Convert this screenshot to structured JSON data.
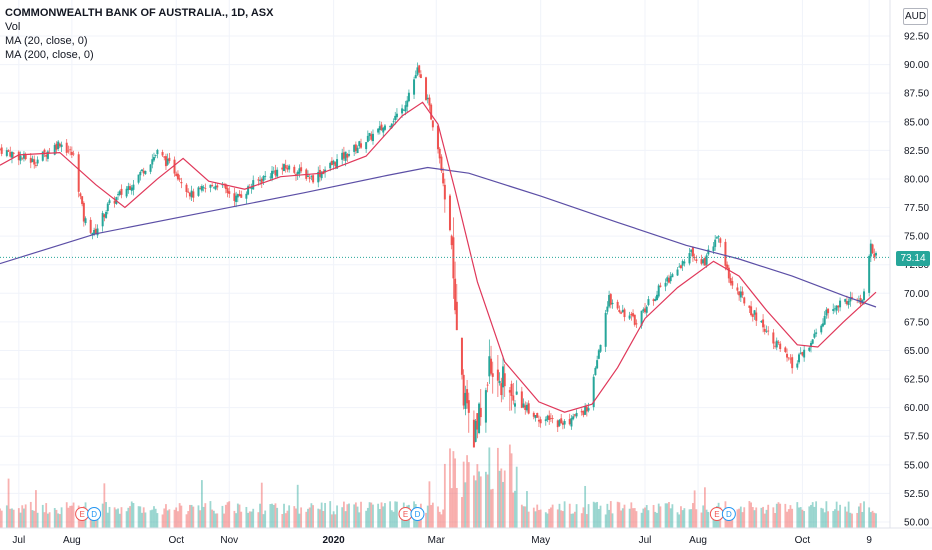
{
  "header": {
    "title": "COMMONWEALTH BANK OF AUSTRALIA., 1D, ASX",
    "indicators": [
      "Vol",
      "MA (20, close, 0)",
      "MA (200, close, 0)"
    ],
    "currency": "AUD",
    "last_price": "73.14"
  },
  "colors": {
    "up": "#26a69a",
    "down": "#ef5350",
    "ma20": "#e0385a",
    "ma200": "#5c4fa6",
    "grid": "#f0f3fa",
    "earnings": "#ef5350",
    "dividend": "#2196f3"
  },
  "events": [
    {
      "label": "E",
      "kind": "earnings",
      "x_date": "2019-08-07"
    },
    {
      "label": "D",
      "kind": "dividend",
      "x_date": "2019-08-14"
    },
    {
      "label": "E",
      "kind": "earnings",
      "x_date": "2020-02-12"
    },
    {
      "label": "D",
      "kind": "dividend",
      "x_date": "2020-02-19"
    },
    {
      "label": "E",
      "kind": "earnings",
      "x_date": "2020-08-12"
    },
    {
      "label": "D",
      "kind": "dividend",
      "x_date": "2020-08-19"
    }
  ],
  "chart_data": {
    "type": "candlestick",
    "x_ticks": [
      {
        "label": "Jul",
        "date": "2019-07-01"
      },
      {
        "label": "Aug",
        "date": "2019-08-01"
      },
      {
        "label": "Oct",
        "date": "2019-10-01"
      },
      {
        "label": "Nov",
        "date": "2019-11-01"
      },
      {
        "label": "2020",
        "date": "2020-01-01",
        "bold": true
      },
      {
        "label": "Mar",
        "date": "2020-03-01"
      },
      {
        "label": "May",
        "date": "2020-05-01"
      },
      {
        "label": "Jul",
        "date": "2020-07-01"
      },
      {
        "label": "Aug",
        "date": "2020-08-01"
      },
      {
        "label": "Oct",
        "date": "2020-10-01"
      },
      {
        "label": "9",
        "date": "2020-11-09"
      }
    ],
    "y_ticks": [
      "92.50",
      "90.00",
      "87.50",
      "85.00",
      "82.50",
      "80.00",
      "77.50",
      "75.00",
      "72.50",
      "70.00",
      "67.50",
      "65.00",
      "62.50",
      "60.00",
      "57.50",
      "55.00",
      "52.50",
      "50.00"
    ],
    "ylim": [
      50.0,
      93.5
    ],
    "last_price": 73.14,
    "price_path": [
      [
        "2019-06-20",
        82.6
      ],
      [
        "2019-07-10",
        81.5
      ],
      [
        "2019-07-25",
        83.2
      ],
      [
        "2019-08-02",
        82.0
      ],
      [
        "2019-08-08",
        76.5
      ],
      [
        "2019-08-14",
        75.2
      ],
      [
        "2019-08-22",
        77.6
      ],
      [
        "2019-09-05",
        79.6
      ],
      [
        "2019-09-20",
        82.3
      ],
      [
        "2019-10-01",
        80.6
      ],
      [
        "2019-10-10",
        78.6
      ],
      [
        "2019-10-25",
        79.6
      ],
      [
        "2019-11-05",
        78.3
      ],
      [
        "2019-11-15",
        79.5
      ],
      [
        "2019-11-25",
        80.5
      ],
      [
        "2019-12-05",
        81.0
      ],
      [
        "2019-12-20",
        80.1
      ],
      [
        "2020-01-10",
        82.3
      ],
      [
        "2020-01-31",
        84.6
      ],
      [
        "2020-02-10",
        86.0
      ],
      [
        "2020-02-19",
        89.5
      ],
      [
        "2020-02-24",
        87.3
      ],
      [
        "2020-03-02",
        83.0
      ],
      [
        "2020-03-09",
        76.0
      ],
      [
        "2020-03-16",
        62.0
      ],
      [
        "2020-03-23",
        57.0
      ],
      [
        "2020-04-01",
        63.5
      ],
      [
        "2020-04-15",
        61.0
      ],
      [
        "2020-05-01",
        59.0
      ],
      [
        "2020-05-15",
        58.6
      ],
      [
        "2020-05-29",
        60.0
      ],
      [
        "2020-06-10",
        69.5
      ],
      [
        "2020-06-25",
        67.5
      ],
      [
        "2020-07-10",
        70.5
      ],
      [
        "2020-07-28",
        73.5
      ],
      [
        "2020-08-05",
        72.8
      ],
      [
        "2020-08-12",
        75.2
      ],
      [
        "2020-08-20",
        71.0
      ],
      [
        "2020-09-01",
        68.5
      ],
      [
        "2020-09-15",
        65.8
      ],
      [
        "2020-09-25",
        63.6
      ],
      [
        "2020-10-05",
        65.3
      ],
      [
        "2020-10-15",
        68.2
      ],
      [
        "2020-10-28",
        69.5
      ],
      [
        "2020-11-05",
        69.2
      ],
      [
        "2020-11-10",
        74.0
      ],
      [
        "2020-11-13",
        73.14
      ]
    ],
    "ma20": [
      [
        "2019-06-20",
        81.2
      ],
      [
        "2019-07-01",
        82.1
      ],
      [
        "2019-07-25",
        82.3
      ],
      [
        "2019-08-15",
        79.5
      ],
      [
        "2019-09-01",
        77.5
      ],
      [
        "2019-09-20",
        80.0
      ],
      [
        "2019-10-05",
        81.8
      ],
      [
        "2019-10-20",
        79.8
      ],
      [
        "2019-11-10",
        79.1
      ],
      [
        "2019-12-01",
        80.2
      ],
      [
        "2019-12-25",
        80.5
      ],
      [
        "2020-01-20",
        82.0
      ],
      [
        "2020-02-10",
        85.5
      ],
      [
        "2020-02-22",
        86.7
      ],
      [
        "2020-03-02",
        84.8
      ],
      [
        "2020-03-12",
        79.0
      ],
      [
        "2020-03-25",
        71.0
      ],
      [
        "2020-04-10",
        64.0
      ],
      [
        "2020-04-30",
        60.5
      ],
      [
        "2020-05-15",
        59.6
      ],
      [
        "2020-05-31",
        60.3
      ],
      [
        "2020-06-15",
        63.5
      ],
      [
        "2020-07-01",
        67.8
      ],
      [
        "2020-07-20",
        70.5
      ],
      [
        "2020-08-10",
        72.8
      ],
      [
        "2020-08-25",
        71.5
      ],
      [
        "2020-09-10",
        68.5
      ],
      [
        "2020-09-28",
        65.5
      ],
      [
        "2020-10-10",
        65.3
      ],
      [
        "2020-10-25",
        67.5
      ],
      [
        "2020-11-05",
        69.0
      ],
      [
        "2020-11-13",
        70.1
      ]
    ],
    "ma200": [
      [
        "2019-06-20",
        72.6
      ],
      [
        "2019-08-15",
        75.2
      ],
      [
        "2019-10-15",
        77.0
      ],
      [
        "2019-12-15",
        78.8
      ],
      [
        "2020-02-01",
        80.3
      ],
      [
        "2020-02-25",
        81.0
      ],
      [
        "2020-03-20",
        80.5
      ],
      [
        "2020-05-01",
        78.5
      ],
      [
        "2020-06-15",
        76.2
      ],
      [
        "2020-07-25",
        74.2
      ],
      [
        "2020-08-25",
        73.0
      ],
      [
        "2020-09-25",
        71.5
      ],
      [
        "2020-10-25",
        69.8
      ],
      [
        "2020-11-13",
        68.8
      ]
    ],
    "volume_ylim": [
      0,
      2.2
    ]
  }
}
